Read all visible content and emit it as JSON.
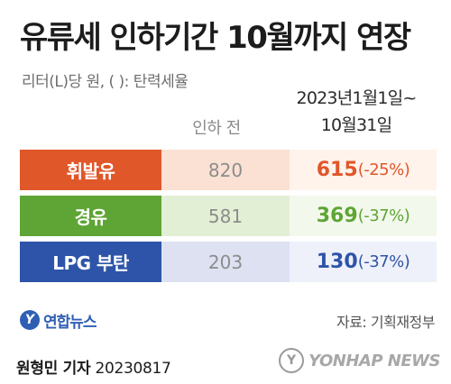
{
  "header": {
    "title": "유류세 인하기간 10월까지 연장",
    "subtitle": "리터(L)당 원, ( ): 탄력세율",
    "period_line1": "2023년1월1일~",
    "period_line2": "10월31일",
    "before_label": "인하 전"
  },
  "chart_data": {
    "type": "table",
    "columns": [
      "",
      "인하 전",
      "2023년1월1일~ 10월31일"
    ],
    "rows": [
      {
        "label": "휘발유",
        "before": "820",
        "after": "615",
        "rate": "(-25%)",
        "label_color": "#e0572a",
        "before_bg": "#fbe1d3",
        "after_bg": "#fff3ec",
        "after_color": "#e0572a"
      },
      {
        "label": "경유",
        "before": "581",
        "after": "369",
        "rate": "(-37%)",
        "label_color": "#5ea535",
        "before_bg": "#e2efd5",
        "after_bg": "#f3f8ec",
        "after_color": "#5ea535"
      },
      {
        "label": "LPG 부탄",
        "before": "203",
        "after": "130",
        "rate": "(-37%)",
        "label_color": "#2d54a8",
        "before_bg": "#dde1f2",
        "after_bg": "#eff1fa",
        "after_color": "#2d54a8"
      }
    ]
  },
  "footer": {
    "logo_text": "연합뉴스",
    "source": "자료: 기획재정부",
    "reporter_name": "원형민 기자",
    "date": "20230817",
    "watermark": "YONHAP NEWS"
  }
}
